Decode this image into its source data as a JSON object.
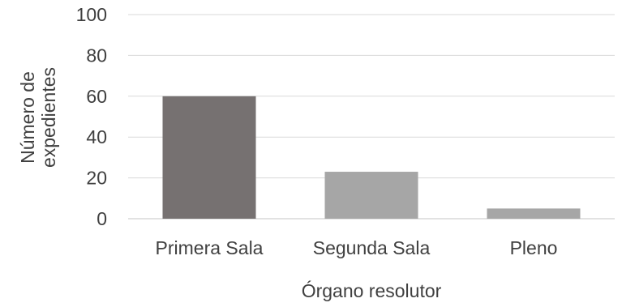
{
  "chart_data": {
    "type": "bar",
    "categories": [
      "Primera Sala",
      "Segunda Sala",
      "Pleno"
    ],
    "values": [
      60,
      23,
      5
    ],
    "title": "",
    "xlabel": "Órgano resolutor",
    "ylabel": [
      "Número de",
      "expedientes"
    ],
    "ylim": [
      0,
      100
    ],
    "yticks": [
      0,
      20,
      40,
      60,
      80,
      100
    ],
    "grid": true,
    "legend": "none",
    "bar_colors": [
      "#767171",
      "#a6a6a6",
      "#a6a6a6"
    ],
    "text_color": "#404040",
    "grid_color": "#d9d9d9"
  }
}
